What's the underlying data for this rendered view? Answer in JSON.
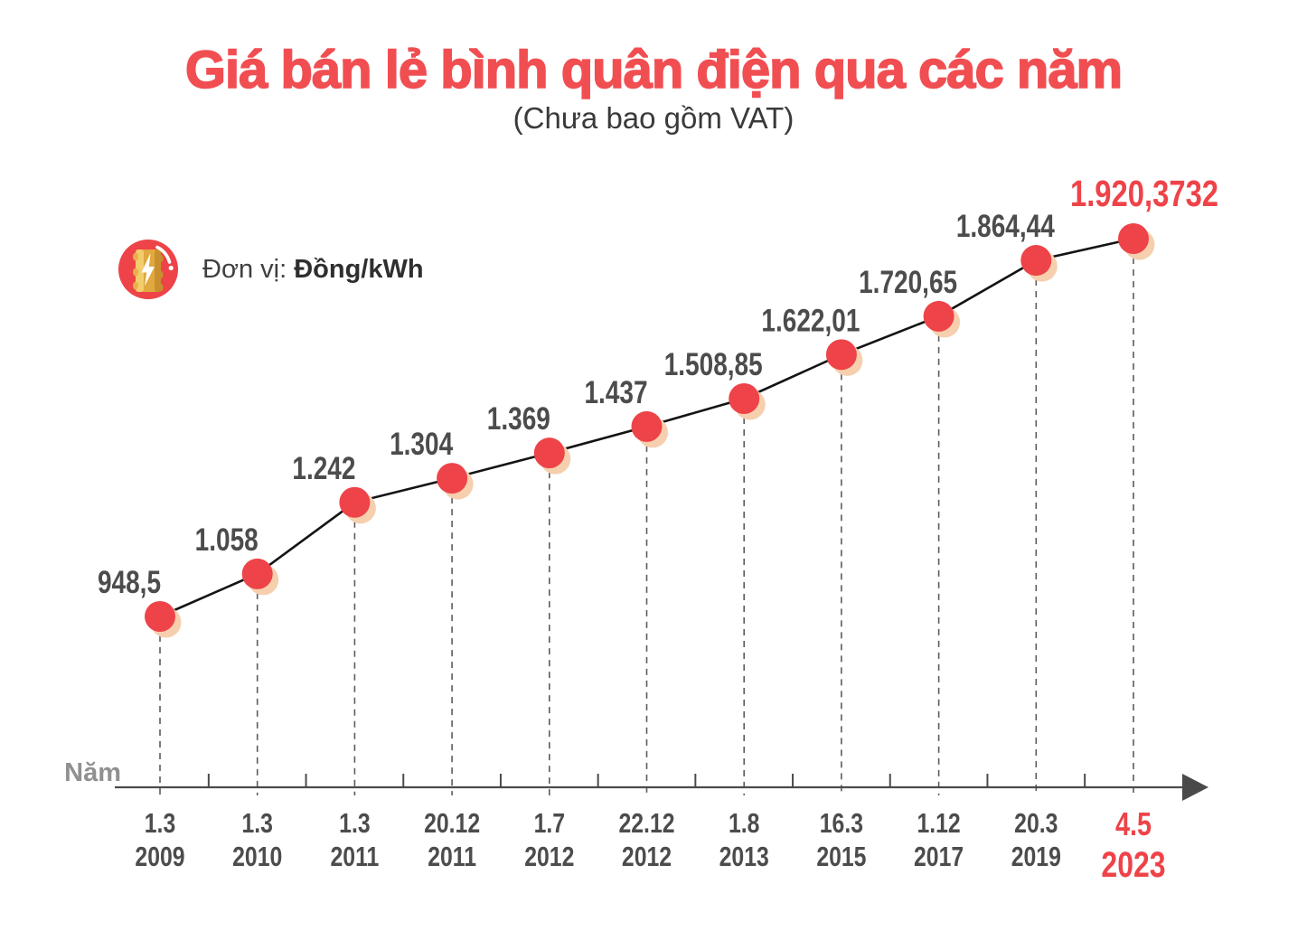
{
  "header": {
    "title": "Giá bán lẻ bình quân điện qua các năm",
    "subtitle": "(Chưa bao gồm VAT)"
  },
  "legend": {
    "icon": "electric-battery-icon",
    "prefix": "Đơn vị:",
    "value": "Đồng/kWh"
  },
  "colors": {
    "accent_red": "#ee4348",
    "title_red": "#f14e52",
    "label_gray": "#4c4c4c",
    "axis_gray": "#4b4b4b",
    "muted_gray": "#909090",
    "shadow_peach": "#f5cfae",
    "series_line": "#141414",
    "subtitle_gray": "#3a3a3a"
  },
  "chart_data": {
    "type": "line",
    "title": "Giá bán lẻ bình quân điện qua các năm (Chưa bao gồm VAT)",
    "unit": "Đồng/kWh",
    "xlabel": "Năm",
    "ylabel": "Đồng/kWh",
    "grid": false,
    "legend_position": "none",
    "ylim": [
      948.5,
      1920.3732
    ],
    "categories": [
      {
        "day": "1.3",
        "year": "2009"
      },
      {
        "day": "1.3",
        "year": "2010"
      },
      {
        "day": "1.3",
        "year": "2011"
      },
      {
        "day": "20.12",
        "year": "2011"
      },
      {
        "day": "1.7",
        "year": "2012"
      },
      {
        "day": "22.12",
        "year": "2012"
      },
      {
        "day": "1.8",
        "year": "2013"
      },
      {
        "day": "16.3",
        "year": "2015"
      },
      {
        "day": "1.12",
        "year": "2017"
      },
      {
        "day": "20.3",
        "year": "2019"
      },
      {
        "day": "4.5",
        "year": "2023"
      }
    ],
    "values": [
      948.5,
      1058,
      1242,
      1304,
      1369,
      1437,
      1508.85,
      1622.01,
      1720.65,
      1864.44,
      1920.3732
    ],
    "value_labels": [
      "948,5",
      "1.058",
      "1.242",
      "1.304",
      "1.369",
      "1.437",
      "1.508,85",
      "1.622,01",
      "1.720,65",
      "1.864,44",
      "1.920,3732"
    ],
    "highlight_index": 10
  }
}
